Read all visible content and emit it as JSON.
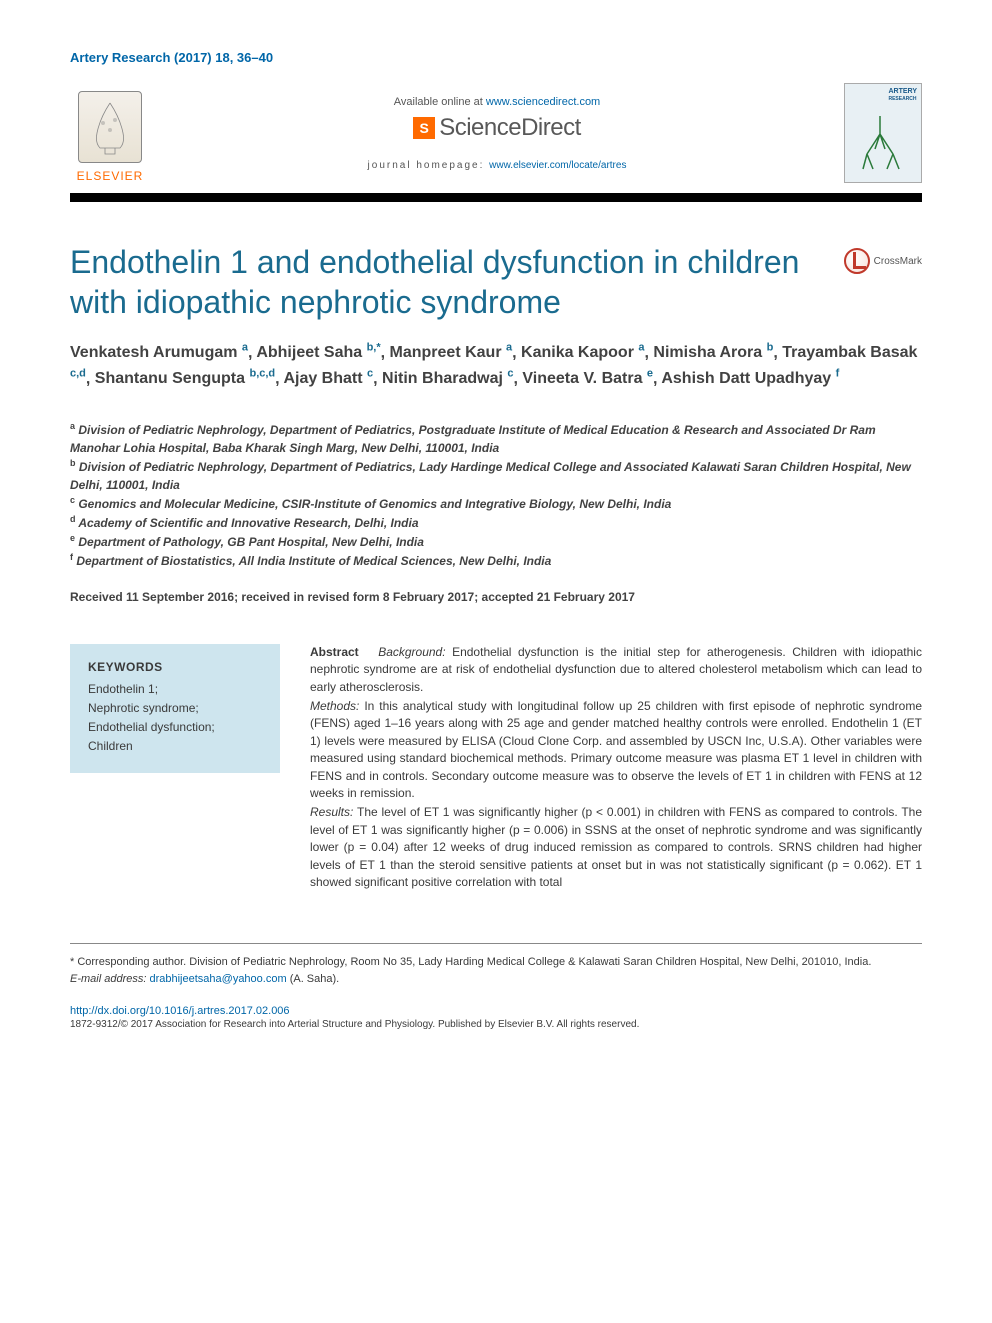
{
  "citation": "Artery Research (2017) 18, 36–40",
  "header": {
    "available_prefix": "Available online at ",
    "available_url": "www.sciencedirect.com",
    "sciencedirect": "ScienceDirect",
    "homepage_prefix": "journal homepage: ",
    "homepage_url": "www.elsevier.com/locate/artres",
    "elsevier_label": "ELSEVIER",
    "journal_cover_label": "ARTERY",
    "journal_cover_sub": "RESEARCH"
  },
  "title": "Endothelin 1 and endothelial dysfunction in children with idiopathic nephrotic syndrome",
  "crossmark": "CrossMark",
  "authors": [
    {
      "name": "Venkatesh Arumugam",
      "aff": "a"
    },
    {
      "name": "Abhijeet Saha",
      "aff": "b,*"
    },
    {
      "name": "Manpreet Kaur",
      "aff": "a"
    },
    {
      "name": "Kanika Kapoor",
      "aff": "a"
    },
    {
      "name": "Nimisha Arora",
      "aff": "b"
    },
    {
      "name": "Trayambak Basak",
      "aff": "c,d"
    },
    {
      "name": "Shantanu Sengupta",
      "aff": "b,c,d"
    },
    {
      "name": "Ajay Bhatt",
      "aff": "c"
    },
    {
      "name": "Nitin Bharadwaj",
      "aff": "c"
    },
    {
      "name": "Vineeta V. Batra",
      "aff": "e"
    },
    {
      "name": "Ashish Datt Upadhyay",
      "aff": "f"
    }
  ],
  "affiliations": [
    {
      "sup": "a",
      "text": "Division of Pediatric Nephrology, Department of Pediatrics, Postgraduate Institute of Medical Education & Research and Associated Dr Ram Manohar Lohia Hospital, Baba Kharak Singh Marg, New Delhi, 110001, India"
    },
    {
      "sup": "b",
      "text": "Division of Pediatric Nephrology, Department of Pediatrics, Lady Hardinge Medical College and Associated Kalawati Saran Children Hospital, New Delhi, 110001, India"
    },
    {
      "sup": "c",
      "text": "Genomics and Molecular Medicine, CSIR-Institute of Genomics and Integrative Biology, New Delhi, India"
    },
    {
      "sup": "d",
      "text": "Academy of Scientific and Innovative Research, Delhi, India"
    },
    {
      "sup": "e",
      "text": "Department of Pathology, GB Pant Hospital, New Delhi, India"
    },
    {
      "sup": "f",
      "text": "Department of Biostatistics, All India Institute of Medical Sciences, New Delhi, India"
    }
  ],
  "dates": "Received 11 September 2016; received in revised form 8 February 2017; accepted 21 February 2017",
  "keywords": {
    "heading": "KEYWORDS",
    "items": [
      "Endothelin 1;",
      "Nephrotic syndrome;",
      "Endothelial dysfunction;",
      "Children"
    ]
  },
  "abstract": {
    "label": "Abstract",
    "background_label": "Background:",
    "background": "Endothelial dysfunction is the initial step for atherogenesis. Children with idiopathic nephrotic syndrome are at risk of endothelial dysfunction due to altered cholesterol metabolism which can lead to early atherosclerosis.",
    "methods_label": "Methods:",
    "methods": "In this analytical study with longitudinal follow up 25 children with first episode of nephrotic syndrome (FENS) aged 1–16 years along with 25 age and gender matched healthy controls were enrolled. Endothelin 1 (ET 1) levels were measured by ELISA (Cloud Clone Corp. and assembled by USCN Inc, U.S.A). Other variables were measured using standard biochemical methods. Primary outcome measure was plasma ET 1 level in children with FENS and in controls. Secondary outcome measure was to observe the levels of ET 1 in children with FENS at 12 weeks in remission.",
    "results_label": "Results:",
    "results": "The level of ET 1 was significantly higher (p < 0.001) in children with FENS as compared to controls. The level of ET 1 was significantly higher (p = 0.006) in SSNS at the onset of nephrotic syndrome and was significantly lower (p = 0.04) after 12 weeks of drug induced remission as compared to controls. SRNS children had higher levels of ET 1 than the steroid sensitive patients at onset but in was not statistically significant (p = 0.062). ET 1 showed significant positive correlation with total"
  },
  "footnotes": {
    "corresponding": "* Corresponding author. Division of Pediatric Nephrology, Room No 35, Lady Harding Medical College & Kalawati Saran Children Hospital, New Delhi, 201010, India.",
    "email_label": "E-mail address:",
    "email": "drabhijeetsaha@yahoo.com",
    "email_author": "(A. Saha)."
  },
  "doi": "http://dx.doi.org/10.1016/j.artres.2017.02.006",
  "copyright": "1872-9312/© 2017 Association for Research into Arterial Structure and Physiology. Published by Elsevier B.V. All rights reserved.",
  "colors": {
    "link": "#0066a8",
    "title": "#1a6b8f",
    "elsevier": "#ff6a00",
    "keywords_bg": "#cee5ee",
    "text": "#3a3a3a"
  },
  "typography": {
    "title_fontsize": 32,
    "body_fontsize": 12,
    "author_fontsize": 16
  }
}
